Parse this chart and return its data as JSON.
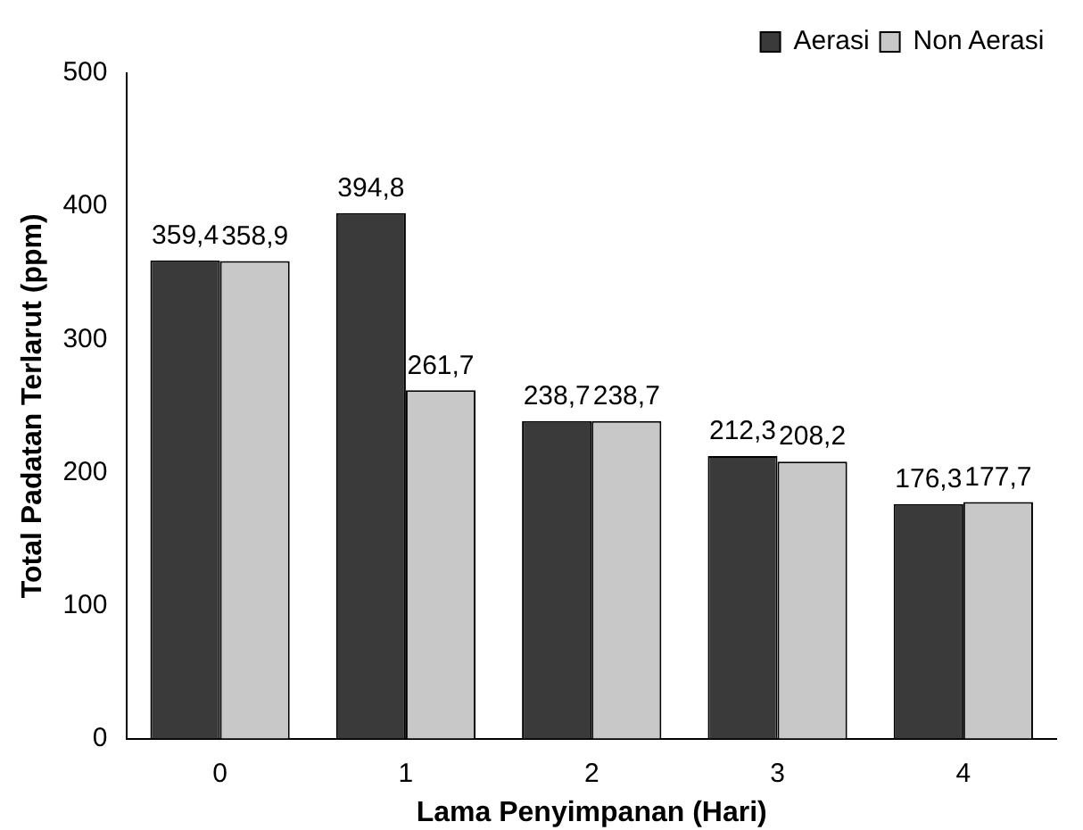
{
  "chart_data": {
    "type": "bar",
    "xlabel": "Lama Penyimpanan (Hari)",
    "ylabel": "Total Padatan Terlarut (ppm)",
    "categories": [
      "0",
      "1",
      "2",
      "3",
      "4"
    ],
    "series": [
      {
        "name": "Aerasi",
        "color": "#3a3a3a",
        "values": [
          359.4,
          394.8,
          238.7,
          212.3,
          176.3
        ],
        "value_labels": [
          "359,4",
          "394,8",
          "238,7",
          "212,3",
          "176,3"
        ]
      },
      {
        "name": "Non Aerasi",
        "color": "#c8c8c8",
        "values": [
          358.9,
          261.7,
          238.7,
          208.2,
          177.7
        ],
        "value_labels": [
          "358,9",
          "261,7",
          "238,7",
          "208,2",
          "177,7"
        ]
      }
    ],
    "ylim": [
      0,
      500
    ],
    "yticks": [
      0,
      100,
      200,
      300,
      400,
      500
    ],
    "grid": false,
    "legend": "top right"
  }
}
